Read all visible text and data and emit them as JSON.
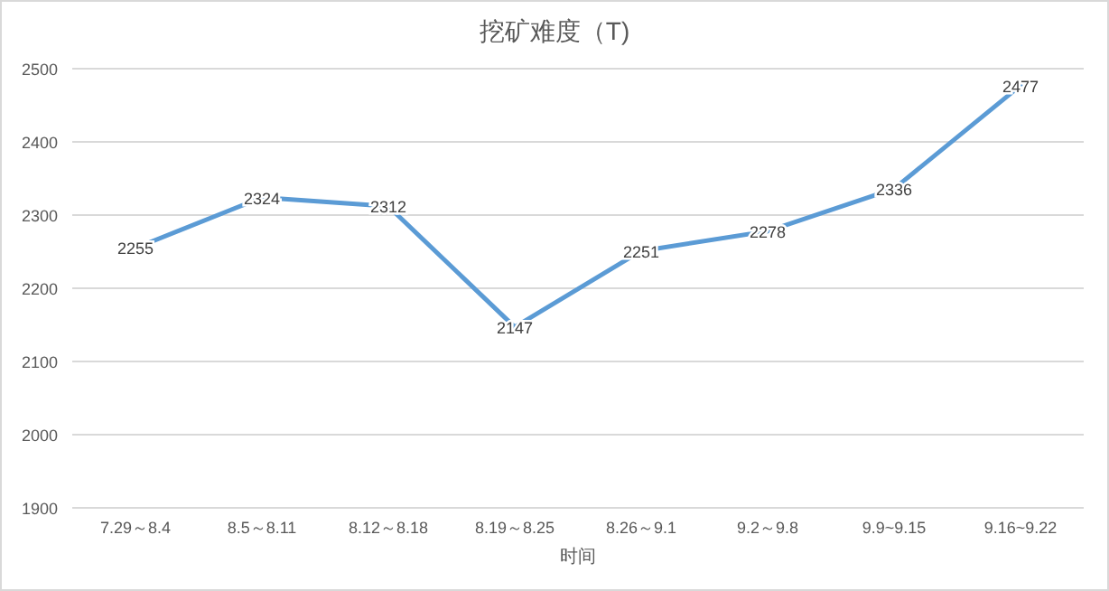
{
  "chart_data": {
    "type": "line",
    "title": "挖矿难度（T)",
    "xlabel": "时间",
    "categories": [
      "7.29～8.4",
      "8.5～8.11",
      "8.12～8.18",
      "8.19～8.25",
      "8.26～9.1",
      "9.2～9.8",
      "9.9~9.15",
      "9.16~9.22"
    ],
    "series": [
      {
        "color": "#5b9bd5",
        "values": [
          2255,
          2324,
          2312,
          2147,
          2251,
          2278,
          2336,
          2477
        ]
      }
    ],
    "ylim": [
      1900,
      2500
    ],
    "yticks": [
      1900,
      2000,
      2100,
      2200,
      2300,
      2400,
      2500
    ],
    "grid": "y",
    "data_labels": true,
    "marker": "none",
    "line_style": "solid"
  }
}
